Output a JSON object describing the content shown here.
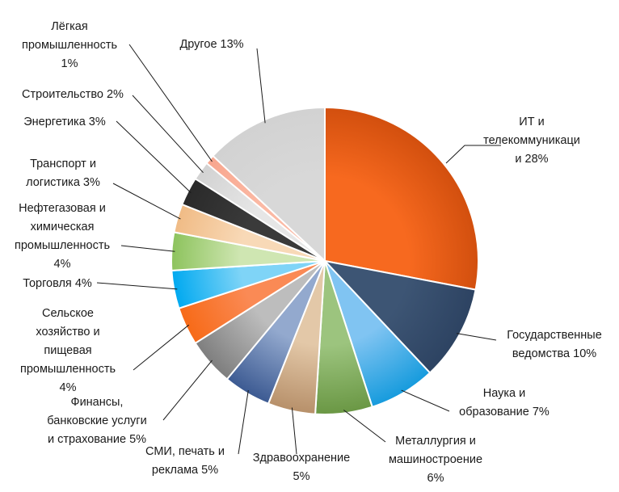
{
  "chart_data": {
    "type": "pie",
    "title": "",
    "slices": [
      {
        "label": [
          "ИТ и",
          "телекоммуникаци",
          "и 28%"
        ],
        "value": 28,
        "color": "#F7691F",
        "shade": "#D24F0E"
      },
      {
        "label": [
          "Государственные",
          "ведомства 10%"
        ],
        "value": 10,
        "color": "#3D5574",
        "shade": "#2D4362"
      },
      {
        "label": [
          "Наука и",
          "образование 7%"
        ],
        "value": 7,
        "color": "#80C4F2",
        "shade": "#169BDD"
      },
      {
        "label": [
          "Металлургия и",
          "машиностроение",
          "6%"
        ],
        "value": 6,
        "color": "#9CC47E",
        "shade": "#6A9744"
      },
      {
        "label": [
          "Здравоохранение",
          "5%"
        ],
        "value": 5,
        "color": "#E3C8A8",
        "shade": "#B7906A"
      },
      {
        "label": [
          "СМИ, печать и",
          "реклама 5%"
        ],
        "value": 5,
        "color": "#93A9CE",
        "shade": "#3C5A92"
      },
      {
        "label": [
          "Финансы,",
          "банковские услуги",
          "и страхование 5%"
        ],
        "value": 5,
        "color": "#BDBDBD",
        "shade": "#7E7E7E"
      },
      {
        "label": [
          "Сельское",
          "хозяйство и",
          "пищевая",
          "промышленность",
          "4%"
        ],
        "value": 4,
        "color": "#FA8A55",
        "shade": "#F76A17"
      },
      {
        "label": [
          "Торговля 4%"
        ],
        "value": 4,
        "color": "#7FD4F7",
        "shade": "#00A9F0"
      },
      {
        "label": [
          "Нефтегазовая и",
          "химическая",
          "промышленность",
          "4%"
        ],
        "value": 4,
        "color": "#CFE6B2",
        "shade": "#8DC35D"
      },
      {
        "label": [
          "Транспорт и",
          "логистика 3%"
        ],
        "value": 3,
        "color": "#F8D9B7",
        "shade": "#F0BB85"
      },
      {
        "label": [
          "Энергетика 3%"
        ],
        "value": 3,
        "color": "#3A3A3A",
        "shade": "#2A2A2A"
      },
      {
        "label": [
          "Строительство 2%"
        ],
        "value": 2,
        "color": "#E6E6E6",
        "shade": "#D2D2D2"
      },
      {
        "label": [
          "Лёгкая",
          "промышленность",
          "1%"
        ],
        "value": 1,
        "color": "#FBB9A4",
        "shade": "#F8A68E"
      },
      {
        "label": [
          "Другое 13%"
        ],
        "value": 13,
        "color": "#D8D8D8",
        "shade": "#D2D2D2"
      }
    ],
    "start_angle": "12 o'clock",
    "direction": "clockwise",
    "legend": "none",
    "labels": "outside with leader lines"
  }
}
